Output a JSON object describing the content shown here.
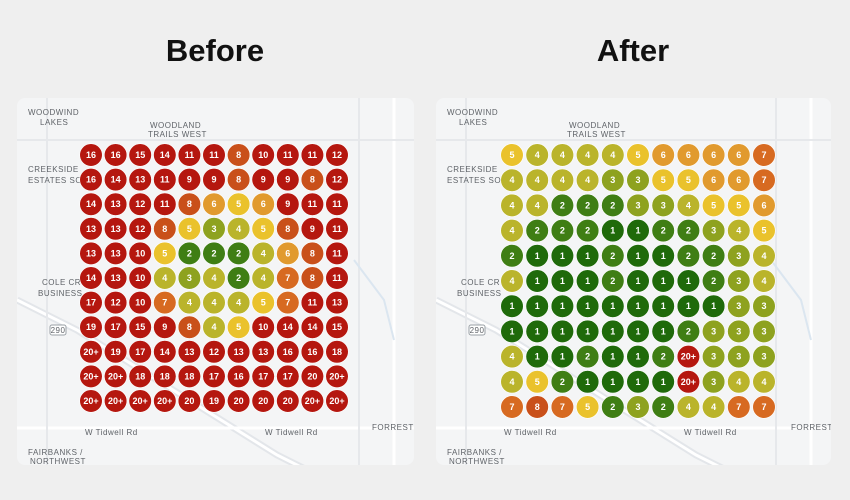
{
  "panels": [
    {
      "title": "Before",
      "map_labels": [
        "WOODWIND",
        "LAKES",
        "WOODLAND",
        "TRAILS WEST",
        "CREEKSIDE",
        "ESTATES SO",
        "COLE CR",
        "BUSINESS",
        "W Tidwell Rd",
        "W Tidwell Rd",
        "FORREST L",
        "FAIRBANKS /",
        "NORTHWEST",
        "290"
      ],
      "grid": [
        [
          16,
          16,
          15,
          14,
          11,
          11,
          8,
          10,
          11,
          11,
          12
        ],
        [
          16,
          14,
          13,
          11,
          9,
          9,
          8,
          9,
          9,
          8,
          12
        ],
        [
          14,
          13,
          12,
          11,
          8,
          6,
          5,
          6,
          9,
          11,
          11
        ],
        [
          13,
          13,
          12,
          8,
          5,
          3,
          4,
          5,
          8,
          9,
          11
        ],
        [
          13,
          13,
          10,
          5,
          2,
          2,
          2,
          4,
          6,
          8,
          11
        ],
        [
          14,
          13,
          10,
          4,
          3,
          4,
          2,
          4,
          7,
          8,
          11
        ],
        [
          17,
          12,
          10,
          7,
          4,
          4,
          4,
          5,
          7,
          11,
          13
        ],
        [
          19,
          17,
          15,
          9,
          8,
          4,
          5,
          10,
          14,
          14,
          15
        ],
        [
          "20+",
          19,
          17,
          14,
          13,
          12,
          13,
          13,
          16,
          16,
          18
        ],
        [
          "20+",
          "20+",
          18,
          18,
          18,
          17,
          16,
          17,
          17,
          20,
          "20+"
        ],
        [
          "20+",
          "20+",
          "20+",
          "20+",
          20,
          19,
          20,
          20,
          20,
          "20+",
          "20+"
        ]
      ]
    },
    {
      "title": "After",
      "map_labels": [
        "WOODWIND",
        "LAKES",
        "WOODLAND",
        "TRAILS WEST",
        "CREEKSIDE",
        "ESTATES SO",
        "COLE CR",
        "BUSINESS",
        "W Tidwell Rd",
        "W Tidwell Rd",
        "FORREST L",
        "FAIRBANKS /",
        "NORTHWEST",
        "290"
      ],
      "grid": [
        [
          5,
          4,
          4,
          4,
          4,
          5,
          6,
          6,
          6,
          6,
          7
        ],
        [
          4,
          4,
          4,
          4,
          3,
          3,
          5,
          5,
          6,
          6,
          7
        ],
        [
          4,
          4,
          2,
          2,
          2,
          3,
          3,
          4,
          5,
          5,
          6
        ],
        [
          4,
          2,
          2,
          2,
          1,
          1,
          2,
          2,
          3,
          4,
          5
        ],
        [
          2,
          1,
          1,
          1,
          2,
          1,
          1,
          2,
          2,
          3,
          4
        ],
        [
          4,
          1,
          1,
          1,
          2,
          1,
          1,
          1,
          2,
          3,
          4
        ],
        [
          1,
          1,
          1,
          1,
          1,
          1,
          1,
          1,
          1,
          3,
          3
        ],
        [
          1,
          1,
          1,
          1,
          1,
          1,
          1,
          2,
          3,
          3,
          3
        ],
        [
          4,
          1,
          1,
          2,
          1,
          1,
          2,
          "20+",
          3,
          3,
          3
        ],
        [
          4,
          5,
          2,
          1,
          1,
          1,
          1,
          "20+",
          3,
          4,
          4
        ],
        [
          7,
          8,
          7,
          5,
          2,
          3,
          2,
          4,
          4,
          7,
          7
        ]
      ]
    }
  ]
}
